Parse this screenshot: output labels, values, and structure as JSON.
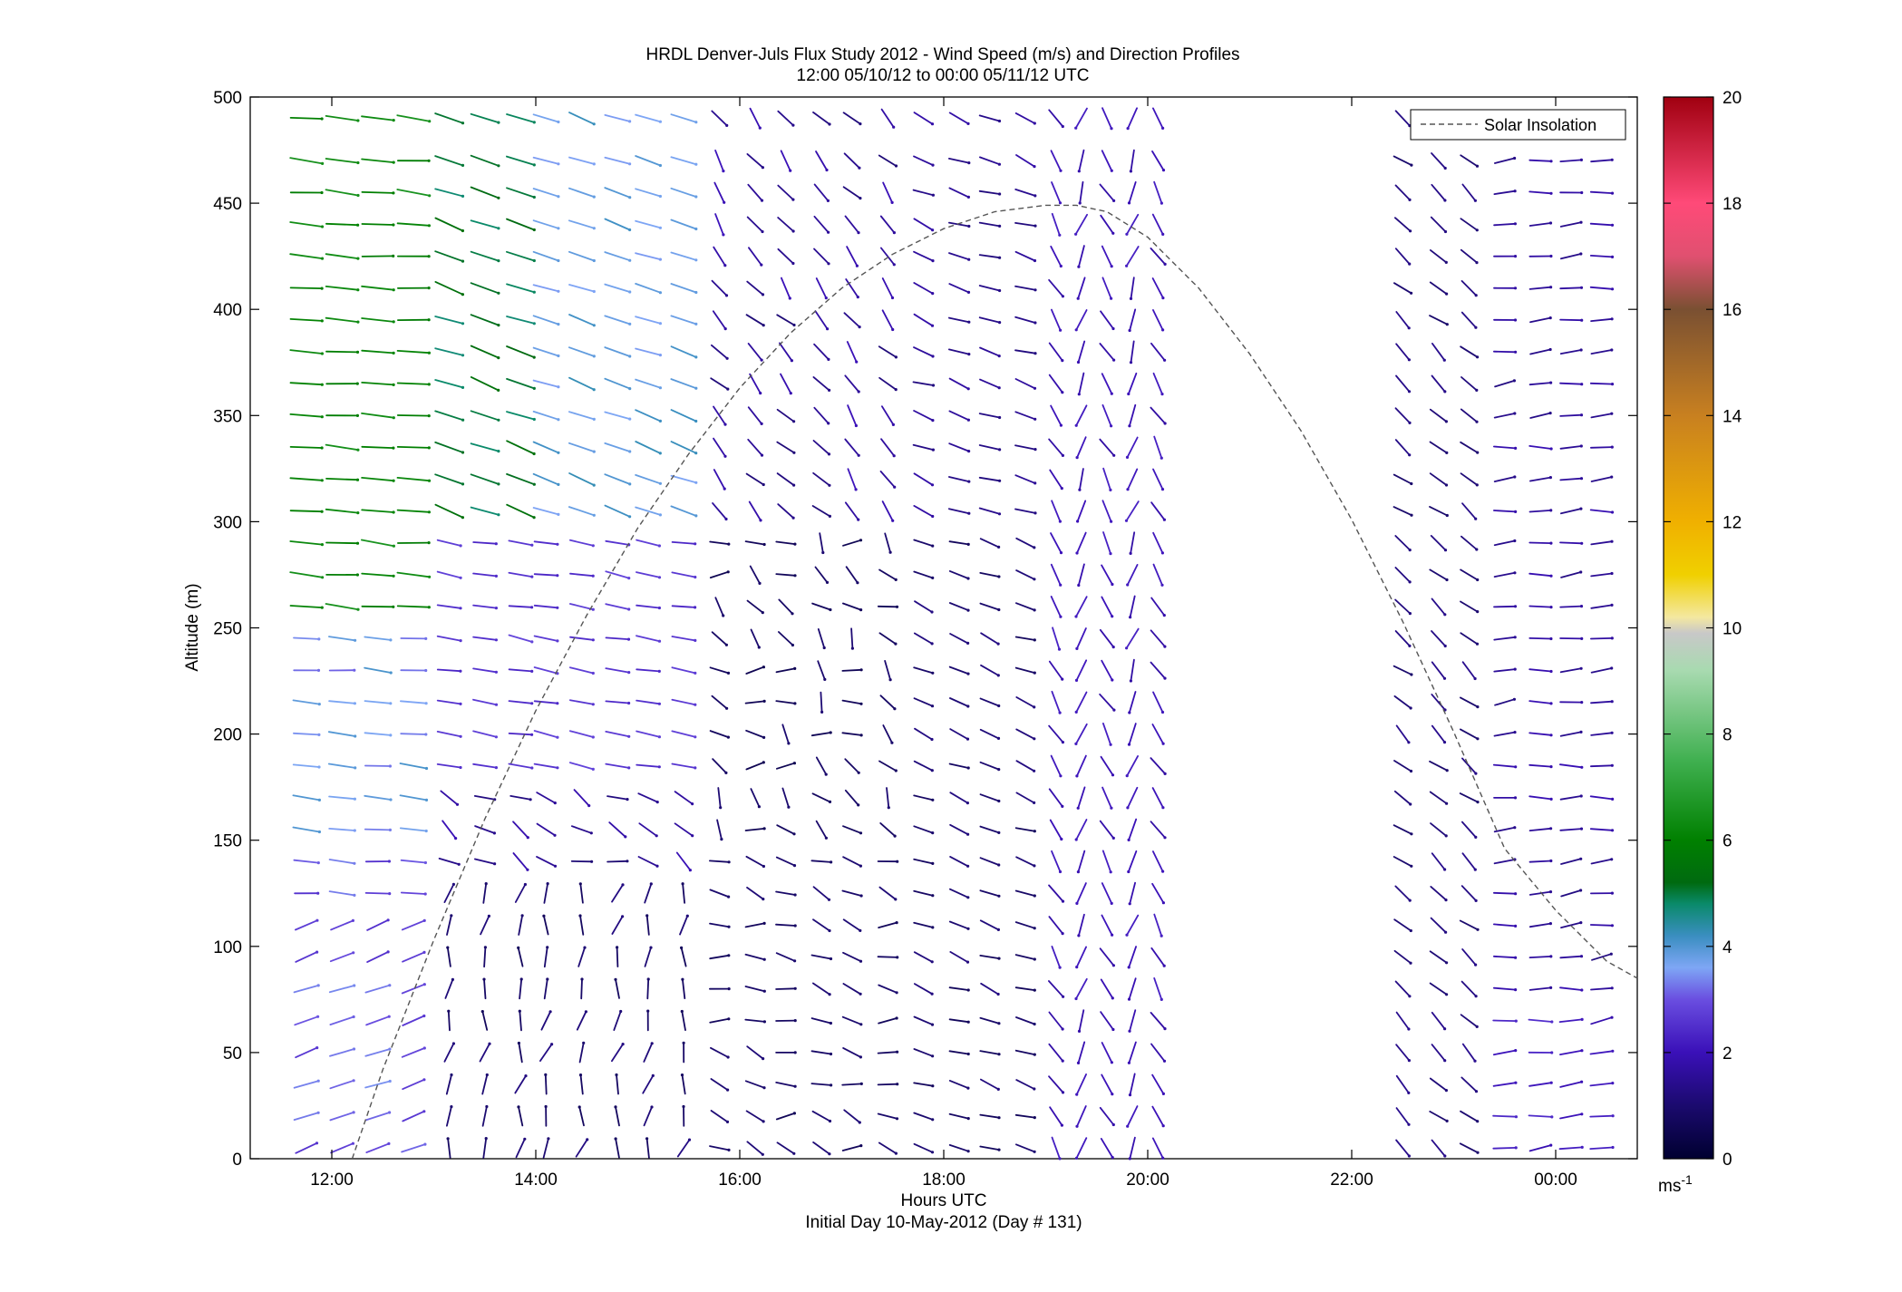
{
  "chart_data": {
    "type": "quiver",
    "title": "HRDL Denver-Juls Flux Study 2012 - Wind Speed (m/s) and Direction Profiles",
    "subtitle": "12:00 05/10/12 to 00:00 05/11/12  UTC",
    "xlabel": "Hours UTC",
    "xlabel2": "Initial Day 10-May-2012 (Day # 131)",
    "ylabel": "Altitude (m)",
    "x_unit": "hours UTC",
    "xlim": [
      11.2,
      24.8
    ],
    "ylim": [
      0,
      500
    ],
    "x_ticks": [
      {
        "value": 12,
        "label": "12:00"
      },
      {
        "value": 14,
        "label": "14:00"
      },
      {
        "value": 16,
        "label": "16:00"
      },
      {
        "value": 18,
        "label": "18:00"
      },
      {
        "value": 20,
        "label": "20:00"
      },
      {
        "value": 22,
        "label": "22:00"
      },
      {
        "value": 24,
        "label": "00:00"
      }
    ],
    "y_ticks": [
      0,
      50,
      100,
      150,
      200,
      250,
      300,
      350,
      400,
      450,
      500
    ],
    "legend": {
      "entries": [
        "Solar Insolation"
      ],
      "position": "top-right"
    },
    "colorbar": {
      "label": "ms",
      "label_exponent": "-1",
      "min": 0,
      "max": 20,
      "ticks": [
        0,
        2,
        4,
        6,
        8,
        10,
        12,
        14,
        16,
        18,
        20
      ],
      "colors": [
        {
          "v": 0,
          "c": "#000030"
        },
        {
          "v": 1,
          "c": "#1b0a6e"
        },
        {
          "v": 2,
          "c": "#3a10b8"
        },
        {
          "v": 3,
          "c": "#6a4ee0"
        },
        {
          "v": 3.6,
          "c": "#7ea6f5"
        },
        {
          "v": 4.2,
          "c": "#3a8ec0"
        },
        {
          "v": 4.8,
          "c": "#0a8a6a"
        },
        {
          "v": 5.2,
          "c": "#006a10"
        },
        {
          "v": 6,
          "c": "#008000"
        },
        {
          "v": 7.5,
          "c": "#40b050"
        },
        {
          "v": 9.2,
          "c": "#a8dab0"
        },
        {
          "v": 9.9,
          "c": "#c8c8c8"
        },
        {
          "v": 10.2,
          "c": "#f4e8a0"
        },
        {
          "v": 11,
          "c": "#f0d000"
        },
        {
          "v": 12,
          "c": "#f0b000"
        },
        {
          "v": 14,
          "c": "#c88020"
        },
        {
          "v": 16,
          "c": "#7a5032"
        },
        {
          "v": 17,
          "c": "#e05070"
        },
        {
          "v": 18,
          "c": "#ff4a78"
        },
        {
          "v": 20,
          "c": "#a00010"
        }
      ]
    },
    "solar_insolation": {
      "x": [
        12.2,
        12.5,
        13.0,
        13.5,
        14.0,
        14.5,
        15.0,
        15.5,
        16.0,
        16.5,
        17.0,
        17.5,
        18.0,
        18.5,
        19.0,
        19.3,
        19.6,
        20.0,
        20.5,
        21.0,
        21.5,
        22.0,
        22.5,
        23.0,
        23.5,
        24.0,
        24.5,
        24.8
      ],
      "y": [
        0,
        42,
        103,
        160,
        211,
        256,
        297,
        332,
        363,
        389,
        410,
        426,
        438,
        446,
        449,
        449,
        446,
        434,
        410,
        379,
        343,
        301,
        253,
        201,
        146,
        117,
        93,
        85
      ]
    },
    "barbs": {
      "times": [
        11.75,
        12.1,
        12.45,
        12.8,
        13.15,
        13.5,
        13.85,
        14.1,
        14.45,
        14.8,
        15.1,
        15.45,
        15.8,
        16.15,
        16.45,
        16.8,
        17.1,
        17.45,
        17.8,
        18.15,
        18.45,
        18.8,
        19.1,
        19.35,
        19.6,
        19.85,
        20.1,
        22.5,
        22.85,
        23.15,
        23.5,
        23.85,
        24.15,
        24.45
      ],
      "altitudes": [
        5,
        20,
        35,
        50,
        65,
        80,
        95,
        110,
        125,
        140,
        155,
        170,
        185,
        200,
        215,
        230,
        245,
        260,
        275,
        290,
        305,
        320,
        335,
        350,
        365,
        380,
        395,
        410,
        425,
        440,
        455,
        470,
        490
      ],
      "note_units": "direction degrees from north the arrow points toward; speed m/s"
    }
  }
}
